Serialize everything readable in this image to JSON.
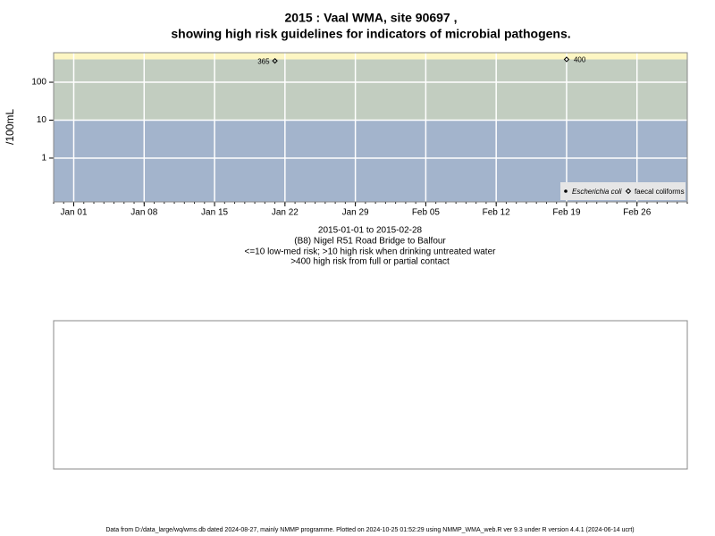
{
  "chart_data": {
    "type": "scatter",
    "title": "2015 : Vaal WMA, site 90697 ,",
    "subtitle": "showing high risk guidelines for indicators of microbial pathogens.",
    "y_label": "/100mL",
    "notes": [
      "2015-01-01 to 2015-02-28",
      "(B8) Nigel R51 Road Bridge to Balfour",
      "<=10 low-med risk; >10 high risk when drinking untreated water",
      ">400 high risk from full or partial contact"
    ],
    "footer": "Data from D:/data_large/wq/wms.db dated 2024-08-27, mainly NMMP programme. Plotted on 2024-10-25 01:52:29 using NMMP_WMA_web.R ver 9.3 under R version 4.4.1 (2024-06-14 ucrt)",
    "log_y": true,
    "grid": true,
    "legend_position": "bottom-right",
    "thresholds": [
      10,
      400
    ],
    "band_colors": [
      "#a3b4cc",
      "#c2cdc0",
      "#fdf6c3"
    ],
    "xlim": [
      "2014-12-30",
      "2015-03-03"
    ],
    "xticks": [
      {
        "value": "2015-01-01",
        "label": "Jan 01"
      },
      {
        "value": "2015-01-08",
        "label": "Jan 08"
      },
      {
        "value": "2015-01-15",
        "label": "Jan 15"
      },
      {
        "value": "2015-01-22",
        "label": "Jan 22"
      },
      {
        "value": "2015-01-29",
        "label": "Jan 29"
      },
      {
        "value": "2015-02-05",
        "label": "Feb 05"
      },
      {
        "value": "2015-02-12",
        "label": "Feb 12"
      },
      {
        "value": "2015-02-19",
        "label": "Feb 19"
      },
      {
        "value": "2015-02-26",
        "label": "Feb 26"
      }
    ],
    "ylim": [
      0.07,
      600
    ],
    "yticks": [
      1,
      10,
      100
    ],
    "series": [
      {
        "name": "Escherichia coli",
        "color": "#000000",
        "marker": "dot",
        "x": [],
        "values": []
      },
      {
        "name": "faecal coliforms",
        "color": "#000000",
        "marker": "diamond",
        "x": [
          "2015-01-21",
          "2015-02-19"
        ],
        "values": [
          365,
          400
        ]
      }
    ]
  }
}
